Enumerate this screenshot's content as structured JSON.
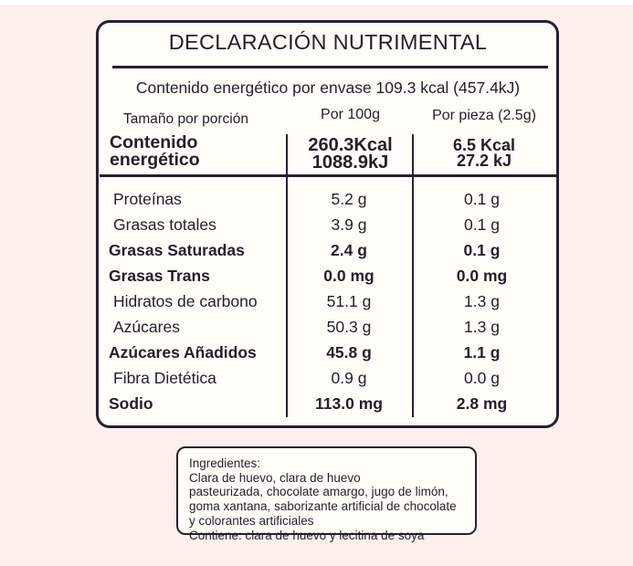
{
  "label": {
    "title": "DECLARACIÓN NUTRIMENTAL",
    "energy_per_package": "Contenido energético por envase 109.3 kcal (457.4kJ)",
    "columns": {
      "serving": "Tamaño por porción",
      "per_100g": "Por 100g",
      "per_piece": "Por pieza (2.5g)"
    },
    "energy_row": {
      "label_line1": "Contenido",
      "label_line2": "energético",
      "per_100g_line1": "260.3Kcal",
      "per_100g_line2": "1088.9kJ",
      "per_piece_line1": "6.5 Kcal",
      "per_piece_line2": "27.2 kJ"
    },
    "rows": [
      {
        "label": "Proteínas",
        "per_100g": "5.2 g",
        "per_piece": "0.1 g"
      },
      {
        "label": "Grasas totales",
        "per_100g": "3.9 g",
        "per_piece": "0.1 g"
      },
      {
        "label": "Grasas Saturadas",
        "per_100g": "2.4 g",
        "per_piece": "0.1 g"
      },
      {
        "label": "Grasas Trans",
        "per_100g": "0.0 mg",
        "per_piece": "0.0 mg"
      },
      {
        "label": "Hidratos de carbono",
        "per_100g": "51.1 g",
        "per_piece": "1.3 g"
      },
      {
        "label": "Azúcares",
        "per_100g": "50.3 g",
        "per_piece": "1.3 g"
      },
      {
        "label": "Azúcares Añadidos",
        "per_100g": "45.8 g",
        "per_piece": "1.1 g"
      },
      {
        "label": "Fibra Dietética",
        "per_100g": "0.9 g",
        "per_piece": "0.0 g"
      },
      {
        "label": "Sodio",
        "per_100g": "113.0 mg",
        "per_piece": "2.8 mg"
      }
    ]
  },
  "ingredients": {
    "lines": [
      "Ingredientes:",
      "Clara de huevo, clara de huevo",
      "pasteurizada, chocolate amargo, jugo de limón,",
      "goma xantana, saborizante artificial de chocolate",
      "y colorantes artificiales",
      "Contiene: clara de huevo y lecitina de soya"
    ]
  },
  "colors": {
    "background": "#fdf0ec",
    "panel": "#fffdf8",
    "ink": "#262033"
  }
}
